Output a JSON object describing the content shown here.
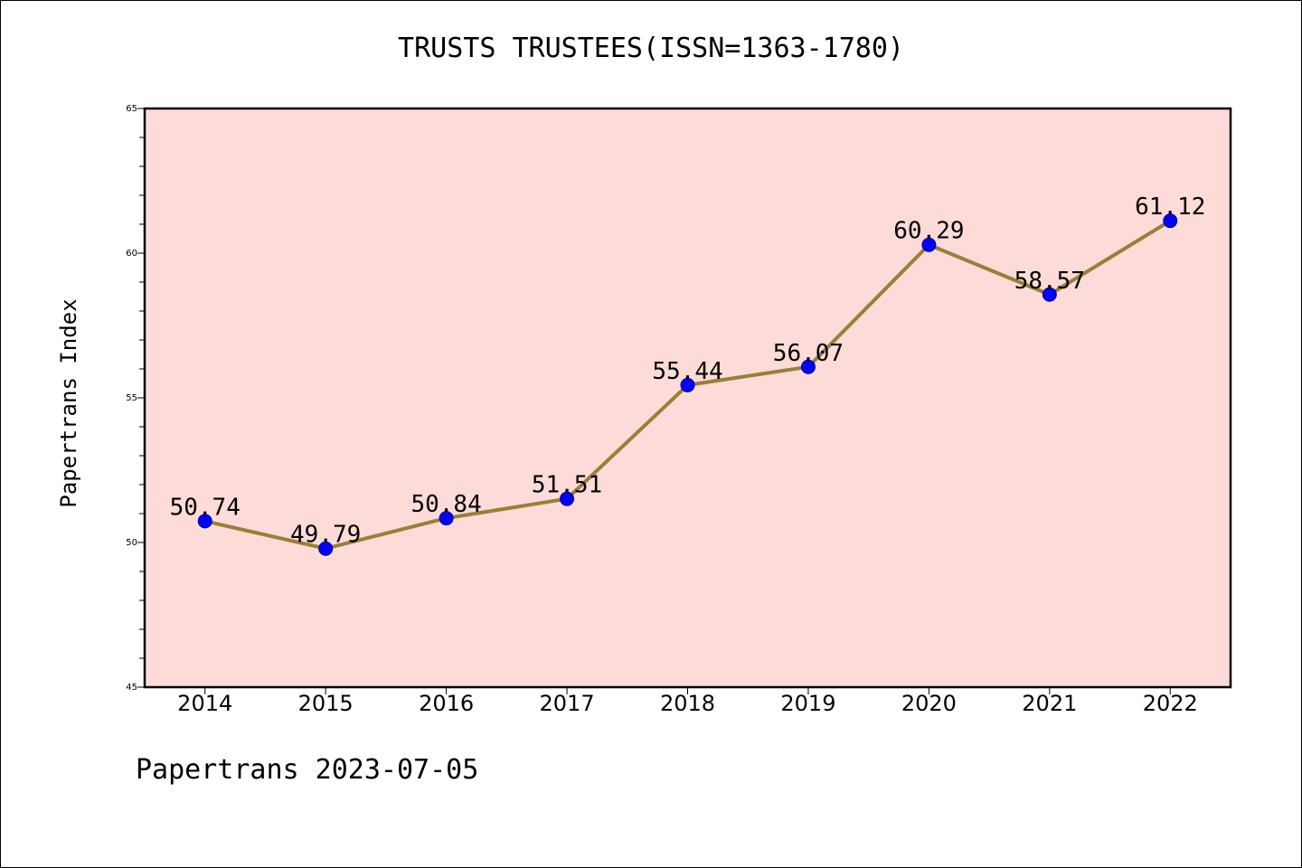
{
  "chart_data": {
    "type": "line",
    "title": "TRUSTS TRUSTEES(ISSN=1363-1780)",
    "xlabel": "",
    "ylabel": "Papertrans Index",
    "categories": [
      "2014",
      "2015",
      "2016",
      "2017",
      "2018",
      "2019",
      "2020",
      "2021",
      "2022"
    ],
    "series": [
      {
        "values": [
          50.74,
          49.79,
          50.84,
          51.51,
          55.44,
          56.07,
          60.29,
          58.57,
          61.12
        ]
      }
    ],
    "data_labels": [
      "50.74",
      "49.79",
      "50.84",
      "51.51",
      "55.44",
      "56.07",
      "60.29",
      "58.57",
      "61.12"
    ],
    "ylim": [
      45,
      65
    ],
    "y_ticks": [
      45,
      50,
      55,
      60,
      65
    ],
    "y_minor_step": 1,
    "grid": false,
    "legend": "none",
    "colors": {
      "plot_background": "#fddbd8",
      "line": "#9a7f37",
      "marker": "#0000ff",
      "marker_edge": "#00008b",
      "axis": "#000000"
    }
  },
  "footer": {
    "text": "Papertrans 2023-07-05"
  }
}
